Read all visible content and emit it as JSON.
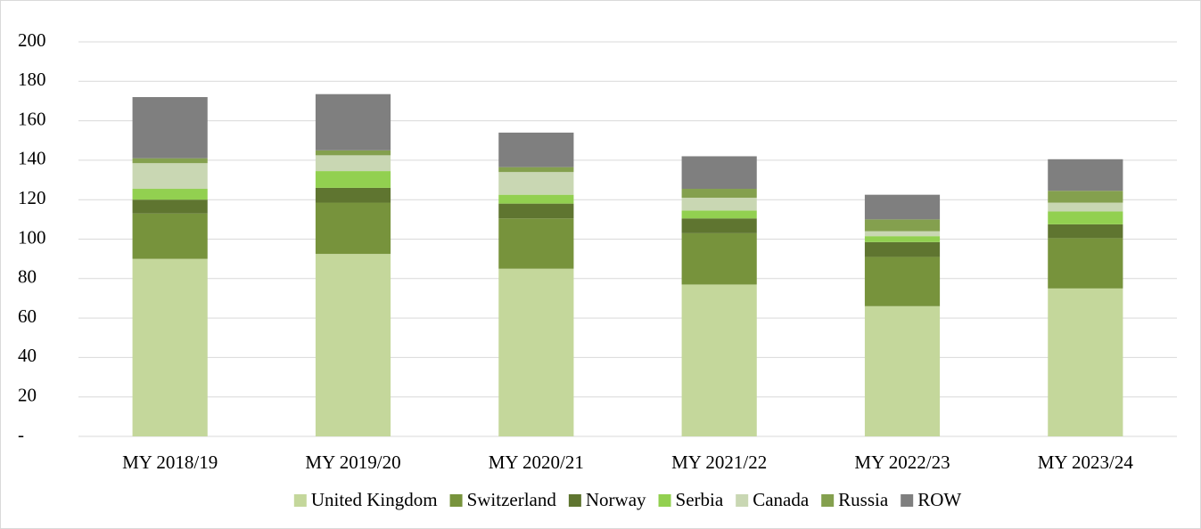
{
  "chart_data": {
    "type": "stacked_bar",
    "categories": [
      "MY 2018/19",
      "MY 2019/20",
      "MY 2020/21",
      "MY 2021/22",
      "MY 2022/23",
      "MY 2023/24"
    ],
    "series": [
      {
        "name": "United Kingdom",
        "color": "#c4d79b",
        "values": [
          90,
          92.5,
          85,
          77,
          66,
          75
        ]
      },
      {
        "name": "Switzerland",
        "color": "#77933c",
        "values": [
          23,
          26,
          25.5,
          26,
          25,
          25.5
        ]
      },
      {
        "name": "Norway",
        "color": "#5f7530",
        "values": [
          7,
          7.5,
          7.5,
          7.5,
          7.5,
          7
        ]
      },
      {
        "name": "Serbia",
        "color": "#92d050",
        "values": [
          5.5,
          8.5,
          4.5,
          4,
          3,
          6.5
        ]
      },
      {
        "name": "Canada",
        "color": "#c9d7b3",
        "values": [
          13,
          8,
          11.5,
          6.5,
          2.5,
          4.5
        ]
      },
      {
        "name": "Russia",
        "color": "#84a04e",
        "values": [
          2.5,
          2.5,
          2.5,
          4.5,
          6,
          6
        ]
      },
      {
        "name": "ROW",
        "color": "#7f7f7f",
        "values": [
          31,
          28.5,
          17.5,
          16.5,
          12.5,
          16
        ]
      }
    ],
    "ylim": [
      0,
      200
    ],
    "yticks": [
      {
        "value": 0,
        "label": "-"
      },
      20,
      40,
      60,
      80,
      100,
      120,
      140,
      160,
      180,
      200
    ],
    "grid": true,
    "legend": "bottom"
  }
}
